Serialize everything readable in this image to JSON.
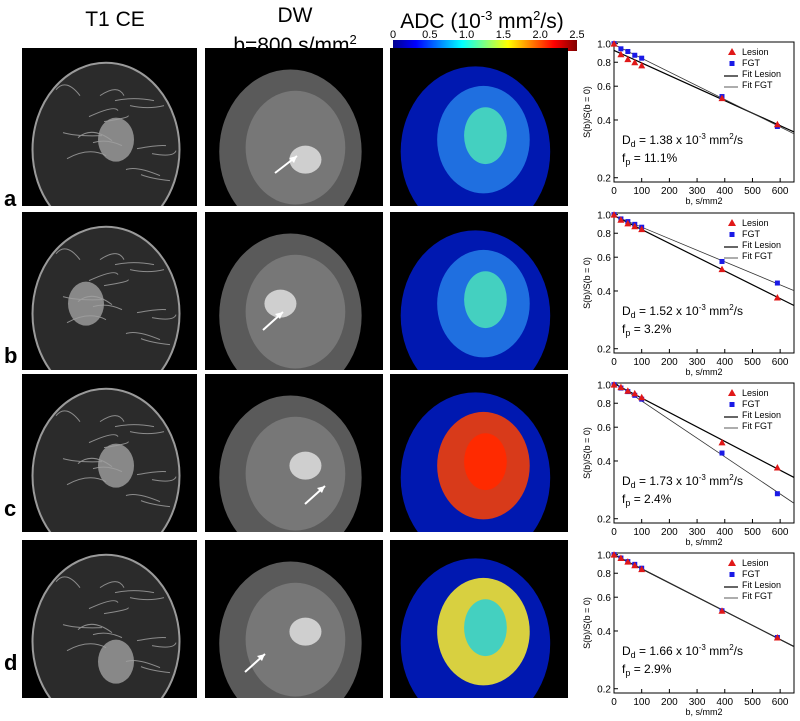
{
  "columns": {
    "t1": "T1 CE",
    "dw_line1": "DW",
    "dw_line2": "b=800 s/mm",
    "dw_sup": "2",
    "adc_a": "ADC (10",
    "adc_sup1": "-3",
    "adc_b": " mm",
    "adc_sup2": "2",
    "adc_c": "/s)"
  },
  "colorbar": {
    "ticks": [
      "0",
      "0.5",
      "1.0",
      "1.5",
      "2.0",
      "2.5"
    ],
    "colors": [
      "#00008f",
      "#0000ff",
      "#0080ff",
      "#00ffff",
      "#80ff80",
      "#ffff00",
      "#ff8000",
      "#ff0000",
      "#800000"
    ]
  },
  "rows": [
    {
      "letter": "a",
      "dd_prefix": "D",
      "dd_sub": "d",
      "dd_value": " = 1.38 x 10",
      "dd_exp": "-3",
      "dd_unit": " mm",
      "dd_unit_sup": "2",
      "dd_unit_end": "/s",
      "fp_prefix": "f",
      "fp_sub": "p",
      "fp_value": " = 11.1%"
    },
    {
      "letter": "b",
      "dd_prefix": "D",
      "dd_sub": "d",
      "dd_value": " = 1.52 x 10",
      "dd_exp": "-3",
      "dd_unit": " mm",
      "dd_unit_sup": "2",
      "dd_unit_end": "/s",
      "fp_prefix": "f",
      "fp_sub": "p",
      "fp_value": " = 3.2%"
    },
    {
      "letter": "c",
      "dd_prefix": "D",
      "dd_sub": "d",
      "dd_value": " = 1.73 x 10",
      "dd_exp": "-3",
      "dd_unit": " mm",
      "dd_unit_sup": "2",
      "dd_unit_end": "/s",
      "fp_prefix": "f",
      "fp_sub": "p",
      "fp_value": " = 2.4%"
    },
    {
      "letter": "d",
      "dd_prefix": "D",
      "dd_sub": "d",
      "dd_value": " = 1.66 x 10",
      "dd_exp": "-3",
      "dd_unit": " mm",
      "dd_unit_sup": "2",
      "dd_unit_end": "/s",
      "fp_prefix": "f",
      "fp_sub": "p",
      "fp_value": " = 2.9%"
    }
  ],
  "chart_data": [
    {
      "type": "scatter",
      "xlabel": "b, s/mm2",
      "ylabel": "S(b)/S(b = 0)",
      "xlim": [
        0,
        650
      ],
      "ylim": [
        0.2,
        1.0
      ],
      "yscale": "log",
      "xticks": [
        "0",
        "100",
        "200",
        "300",
        "400",
        "500",
        "600"
      ],
      "yticks": [
        "1.0",
        "0.8",
        "0.6",
        "0.4",
        "0.2"
      ],
      "legend": [
        "Lesion",
        "FGT",
        "Fit Lesion",
        "Fit FGT"
      ],
      "series": [
        {
          "name": "Lesion",
          "x": [
            0,
            25,
            50,
            75,
            100,
            390,
            590
          ],
          "y": [
            1.0,
            0.88,
            0.83,
            0.8,
            0.77,
            0.52,
            0.38
          ]
        },
        {
          "name": "FGT",
          "x": [
            0,
            25,
            50,
            75,
            100,
            390,
            590
          ],
          "y": [
            1.0,
            0.94,
            0.91,
            0.87,
            0.84,
            0.53,
            0.37
          ]
        }
      ]
    },
    {
      "type": "scatter",
      "xlabel": "b, s/mm2",
      "ylabel": "S(b)/S(b = 0)",
      "xlim": [
        0,
        650
      ],
      "ylim": [
        0.2,
        1.0
      ],
      "yscale": "log",
      "xticks": [
        "0",
        "100",
        "200",
        "300",
        "400",
        "500",
        "600"
      ],
      "yticks": [
        "1.0",
        "0.8",
        "0.6",
        "0.4",
        "0.2"
      ],
      "legend": [
        "Lesion",
        "FGT",
        "Fit Lesion",
        "Fit FGT"
      ],
      "series": [
        {
          "name": "Lesion",
          "x": [
            0,
            25,
            50,
            75,
            100,
            390,
            590
          ],
          "y": [
            1.0,
            0.94,
            0.9,
            0.87,
            0.84,
            0.52,
            0.37
          ]
        },
        {
          "name": "FGT",
          "x": [
            0,
            25,
            50,
            75,
            100,
            390,
            590
          ],
          "y": [
            1.0,
            0.95,
            0.92,
            0.89,
            0.86,
            0.57,
            0.44
          ]
        }
      ]
    },
    {
      "type": "scatter",
      "xlabel": "b, s/mm2",
      "ylabel": "S(b)/S(b = 0)",
      "xlim": [
        0,
        650
      ],
      "ylim": [
        0.2,
        1.0
      ],
      "yscale": "log",
      "xticks": [
        "0",
        "100",
        "200",
        "300",
        "400",
        "500",
        "600"
      ],
      "yticks": [
        "1.0",
        "0.8",
        "0.6",
        "0.4",
        "0.2"
      ],
      "legend": [
        "Lesion",
        "FGT",
        "Fit Lesion",
        "Fit FGT"
      ],
      "series": [
        {
          "name": "Lesion",
          "x": [
            0,
            25,
            50,
            75,
            100,
            390,
            590
          ],
          "y": [
            1.0,
            0.97,
            0.93,
            0.9,
            0.86,
            0.5,
            0.37
          ]
        },
        {
          "name": "FGT",
          "x": [
            0,
            25,
            50,
            75,
            100,
            390,
            590
          ],
          "y": [
            1.0,
            0.96,
            0.92,
            0.88,
            0.84,
            0.44,
            0.27
          ]
        }
      ]
    },
    {
      "type": "scatter",
      "xlabel": "b, s/mm2",
      "ylabel": "S(b)/S(b = 0)",
      "xlim": [
        0,
        650
      ],
      "ylim": [
        0.2,
        1.0
      ],
      "yscale": "log",
      "xticks": [
        "0",
        "100",
        "200",
        "300",
        "400",
        "500",
        "600"
      ],
      "yticks": [
        "1.0",
        "0.8",
        "0.6",
        "0.4",
        "0.2"
      ],
      "legend": [
        "Lesion",
        "FGT",
        "Fit Lesion",
        "Fit FGT"
      ],
      "series": [
        {
          "name": "Lesion",
          "x": [
            0,
            25,
            50,
            75,
            100,
            390,
            590
          ],
          "y": [
            1.0,
            0.96,
            0.92,
            0.88,
            0.84,
            0.51,
            0.37
          ]
        },
        {
          "name": "FGT",
          "x": [
            0,
            25,
            50,
            75,
            100,
            390,
            590
          ],
          "y": [
            1.0,
            0.96,
            0.92,
            0.89,
            0.85,
            0.51,
            0.37
          ]
        }
      ]
    }
  ]
}
